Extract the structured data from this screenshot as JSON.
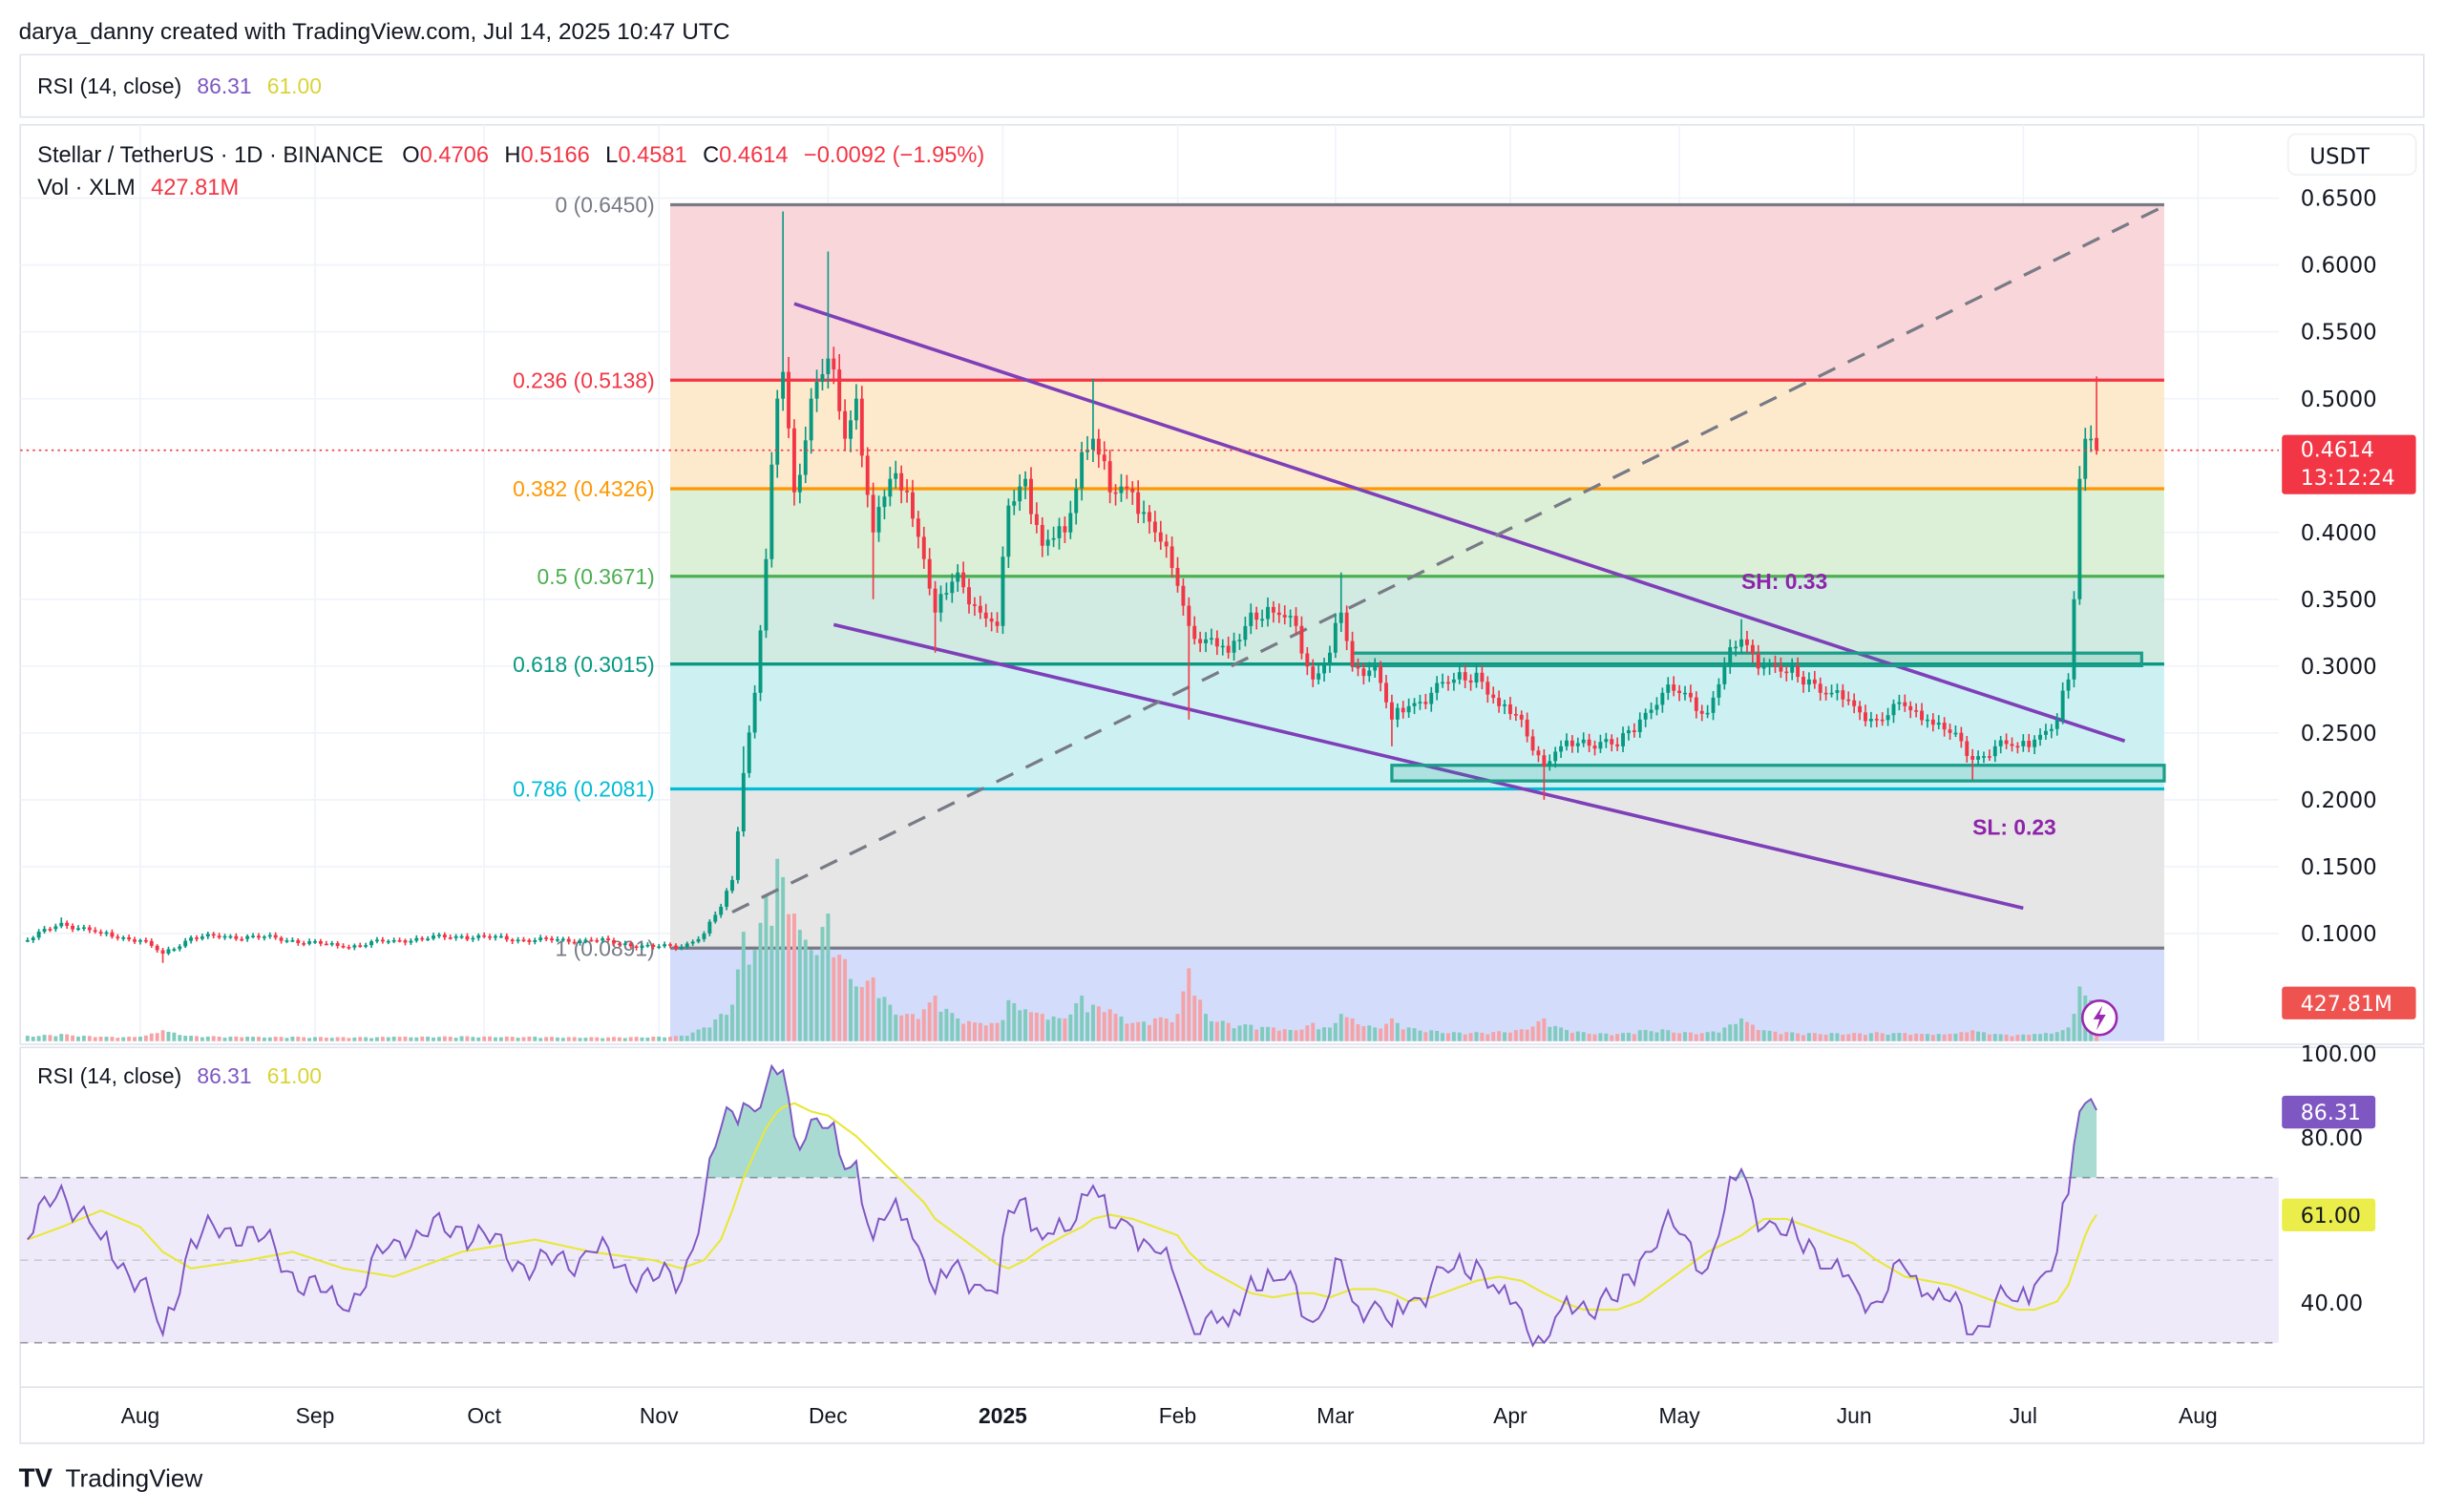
{
  "header": {
    "attribution": "darya_danny created with TradingView.com, Jul 14, 2025 10:47 UTC",
    "rsi_legend": {
      "label": "RSI (14, close)",
      "value": "86.31",
      "ma": "61.00"
    },
    "symbol": {
      "title": "Stellar / TetherUS · 1D · BINANCE",
      "o_label": "O",
      "o": "0.4706",
      "h_label": "H",
      "h": "0.5166",
      "l_label": "L",
      "l": "0.4581",
      "c_label": "C",
      "c": "0.4614",
      "change": "−0.0092 (−1.95%)"
    },
    "volume": {
      "label": "Vol · XLM",
      "value": "427.81M"
    }
  },
  "price_axis": {
    "currency_button": "USDT",
    "ticks": [
      "0.6500",
      "0.6000",
      "0.5500",
      "0.5000",
      "0.4000",
      "0.3500",
      "0.3000",
      "0.2500",
      "0.2000",
      "0.1500",
      "0.1000"
    ],
    "last_price": "0.4614",
    "countdown": "13:12:24",
    "volume_badge": "427.81M"
  },
  "rsi_pane": {
    "label": "RSI (14, close)",
    "value": "86.31",
    "ma": "61.00",
    "ticks": [
      "100.00",
      "80.00",
      "40.00"
    ],
    "upper_band": 70,
    "middle": 50,
    "lower_band": 30
  },
  "time_axis": {
    "labels": [
      {
        "text": "Aug",
        "date": "2024-08-01",
        "bold": false
      },
      {
        "text": "Sep",
        "date": "2024-09-01",
        "bold": false
      },
      {
        "text": "Oct",
        "date": "2024-10-01",
        "bold": false
      },
      {
        "text": "Nov",
        "date": "2024-11-01",
        "bold": false
      },
      {
        "text": "Dec",
        "date": "2024-12-01",
        "bold": false
      },
      {
        "text": "2025",
        "date": "2025-01-01",
        "bold": true
      },
      {
        "text": "Feb",
        "date": "2025-02-01",
        "bold": false
      },
      {
        "text": "Mar",
        "date": "2025-03-01",
        "bold": false
      },
      {
        "text": "Apr",
        "date": "2025-04-01",
        "bold": false
      },
      {
        "text": "May",
        "date": "2025-05-01",
        "bold": false
      },
      {
        "text": "Jun",
        "date": "2025-06-01",
        "bold": false
      },
      {
        "text": "Jul",
        "date": "2025-07-01",
        "bold": false
      },
      {
        "text": "Aug",
        "date": "2025-08-01",
        "bold": false
      }
    ]
  },
  "footer": {
    "brand": "TradingView"
  },
  "colors": {
    "up": "#089981",
    "down": "#f23645",
    "rsi": "#7e57c2",
    "rsi_ma": "#e8e83a",
    "trendline": "#7e3fb8",
    "box": "#1a9e8a",
    "grid": "#f0f3fa"
  },
  "chart_data": {
    "type": "candlestick",
    "ylim": [
      0.05,
      0.66
    ],
    "yscale": "linear",
    "grid": true,
    "columns": [
      "date",
      "close",
      "high",
      "low",
      "rsi",
      "rsi_ma",
      "volume_M"
    ],
    "candles": [
      [
        "2024-07-12",
        0.095,
        null,
        null,
        55,
        55,
        60
      ],
      [
        "2024-07-18",
        0.108,
        0.112,
        null,
        68,
        58,
        80
      ],
      [
        "2024-07-25",
        0.1,
        null,
        null,
        55,
        62,
        50
      ],
      [
        "2024-08-01",
        0.095,
        null,
        null,
        45,
        58,
        50
      ],
      [
        "2024-08-05",
        0.085,
        null,
        0.078,
        32,
        52,
        120
      ],
      [
        "2024-08-10",
        0.097,
        null,
        null,
        55,
        48,
        60
      ],
      [
        "2024-08-20",
        0.098,
        null,
        null,
        58,
        50,
        50
      ],
      [
        "2024-08-28",
        0.095,
        null,
        null,
        47,
        52,
        50
      ],
      [
        "2024-09-06",
        0.09,
        null,
        null,
        38,
        48,
        45
      ],
      [
        "2024-09-15",
        0.095,
        null,
        null,
        55,
        46,
        50
      ],
      [
        "2024-09-27",
        0.098,
        null,
        null,
        58,
        52,
        55
      ],
      [
        "2024-10-10",
        0.095,
        null,
        null,
        48,
        55,
        50
      ],
      [
        "2024-10-20",
        0.095,
        null,
        null,
        52,
        52,
        45
      ],
      [
        "2024-10-31",
        0.09,
        null,
        null,
        45,
        50,
        50
      ],
      [
        "2024-11-05",
        0.09,
        null,
        null,
        45,
        48,
        60
      ],
      [
        "2024-11-09",
        0.1,
        null,
        null,
        65,
        50,
        150
      ],
      [
        "2024-11-12",
        0.12,
        null,
        null,
        82,
        55,
        300
      ],
      [
        "2024-11-14",
        0.14,
        null,
        null,
        86,
        62,
        400
      ],
      [
        "2024-11-16",
        0.22,
        0.24,
        null,
        88,
        70,
        1200
      ],
      [
        "2024-11-18",
        0.28,
        null,
        null,
        86,
        76,
        1000
      ],
      [
        "2024-11-20",
        0.38,
        null,
        null,
        92,
        82,
        1600
      ],
      [
        "2024-11-22",
        0.5,
        null,
        null,
        95,
        86,
        2000
      ],
      [
        "2024-11-23",
        0.52,
        0.64,
        null,
        96,
        87,
        1800
      ],
      [
        "2024-11-25",
        0.43,
        null,
        0.42,
        80,
        88,
        1400
      ],
      [
        "2024-11-28",
        0.5,
        null,
        null,
        84,
        86,
        1000
      ],
      [
        "2024-12-01",
        0.53,
        0.61,
        null,
        82,
        85,
        1400
      ],
      [
        "2024-12-04",
        0.47,
        null,
        null,
        72,
        82,
        900
      ],
      [
        "2024-12-06",
        0.5,
        null,
        null,
        74,
        80,
        600
      ],
      [
        "2024-12-09",
        0.4,
        null,
        0.35,
        55,
        76,
        700
      ],
      [
        "2024-12-12",
        0.44,
        null,
        null,
        62,
        72,
        400
      ],
      [
        "2024-12-15",
        0.43,
        null,
        null,
        60,
        68,
        300
      ],
      [
        "2024-12-18",
        0.38,
        null,
        null,
        50,
        64,
        350
      ],
      [
        "2024-12-20",
        0.34,
        null,
        0.31,
        42,
        60,
        500
      ],
      [
        "2024-12-24",
        0.37,
        null,
        null,
        50,
        56,
        250
      ],
      [
        "2024-12-28",
        0.34,
        null,
        null,
        44,
        52,
        200
      ],
      [
        "2024-12-31",
        0.33,
        null,
        null,
        42,
        49,
        200
      ],
      [
        "2025-01-02",
        0.42,
        null,
        null,
        62,
        48,
        450
      ],
      [
        "2025-01-05",
        0.44,
        null,
        null,
        65,
        50,
        350
      ],
      [
        "2025-01-08",
        0.39,
        null,
        null,
        55,
        53,
        300
      ],
      [
        "2025-01-12",
        0.4,
        null,
        null,
        57,
        56,
        250
      ],
      [
        "2025-01-15",
        0.46,
        null,
        null,
        66,
        58,
        500
      ],
      [
        "2025-01-17",
        0.47,
        0.515,
        null,
        68,
        60,
        400
      ],
      [
        "2025-01-20",
        0.43,
        null,
        null,
        58,
        61,
        350
      ],
      [
        "2025-01-24",
        0.43,
        null,
        null,
        58,
        60,
        200
      ],
      [
        "2025-01-28",
        0.4,
        null,
        null,
        52,
        58,
        250
      ],
      [
        "2025-02-01",
        0.36,
        null,
        null,
        44,
        56,
        300
      ],
      [
        "2025-02-03",
        0.33,
        null,
        0.26,
        36,
        52,
        800
      ],
      [
        "2025-02-06",
        0.32,
        null,
        null,
        36,
        48,
        300
      ],
      [
        "2025-02-10",
        0.31,
        null,
        null,
        34,
        45,
        200
      ],
      [
        "2025-02-14",
        0.34,
        null,
        null,
        46,
        42,
        180
      ],
      [
        "2025-02-18",
        0.34,
        null,
        null,
        45,
        41,
        150
      ],
      [
        "2025-02-22",
        0.33,
        null,
        null,
        44,
        42,
        120
      ],
      [
        "2025-02-25",
        0.29,
        null,
        null,
        35,
        42,
        200
      ],
      [
        "2025-02-28",
        0.31,
        null,
        null,
        42,
        41,
        150
      ],
      [
        "2025-03-02",
        0.34,
        0.37,
        null,
        50,
        42,
        300
      ],
      [
        "2025-03-04",
        0.3,
        null,
        null,
        40,
        43,
        250
      ],
      [
        "2025-03-08",
        0.3,
        null,
        null,
        40,
        43,
        150
      ],
      [
        "2025-03-11",
        0.26,
        null,
        0.24,
        34,
        42,
        250
      ],
      [
        "2025-03-14",
        0.27,
        null,
        null,
        40,
        40,
        150
      ],
      [
        "2025-03-18",
        0.28,
        null,
        null,
        44,
        41,
        120
      ],
      [
        "2025-03-22",
        0.29,
        null,
        null,
        48,
        43,
        100
      ],
      [
        "2025-03-26",
        0.295,
        null,
        null,
        50,
        45,
        100
      ],
      [
        "2025-03-30",
        0.27,
        null,
        null,
        42,
        46,
        110
      ],
      [
        "2025-04-03",
        0.26,
        null,
        null,
        38,
        45,
        130
      ],
      [
        "2025-04-07",
        0.225,
        null,
        0.2,
        30,
        42,
        250
      ],
      [
        "2025-04-10",
        0.24,
        null,
        null,
        38,
        40,
        150
      ],
      [
        "2025-04-14",
        0.245,
        null,
        null,
        40,
        38,
        100
      ],
      [
        "2025-04-20",
        0.24,
        null,
        null,
        40,
        38,
        80
      ],
      [
        "2025-04-24",
        0.26,
        null,
        null,
        50,
        40,
        120
      ],
      [
        "2025-04-28",
        0.28,
        null,
        null,
        58,
        44,
        130
      ],
      [
        "2025-05-02",
        0.28,
        null,
        null,
        56,
        48,
        100
      ],
      [
        "2025-05-06",
        0.265,
        null,
        null,
        48,
        52,
        100
      ],
      [
        "2025-05-09",
        0.3,
        null,
        null,
        62,
        54,
        150
      ],
      [
        "2025-05-12",
        0.32,
        0.335,
        null,
        72,
        56,
        250
      ],
      [
        "2025-05-16",
        0.3,
        null,
        null,
        58,
        60,
        120
      ],
      [
        "2025-05-20",
        0.295,
        null,
        null,
        56,
        60,
        100
      ],
      [
        "2025-05-24",
        0.29,
        null,
        null,
        55,
        58,
        90
      ],
      [
        "2025-05-28",
        0.28,
        null,
        null,
        48,
        56,
        90
      ],
      [
        "2025-06-01",
        0.27,
        null,
        null,
        44,
        54,
        90
      ],
      [
        "2025-06-05",
        0.26,
        null,
        null,
        40,
        50,
        100
      ],
      [
        "2025-06-10",
        0.27,
        null,
        null,
        48,
        46,
        90
      ],
      [
        "2025-06-14",
        0.26,
        null,
        null,
        42,
        45,
        80
      ],
      [
        "2025-06-18",
        0.25,
        null,
        null,
        40,
        44,
        80
      ],
      [
        "2025-06-22",
        0.23,
        null,
        0.215,
        32,
        42,
        120
      ],
      [
        "2025-06-26",
        0.24,
        null,
        null,
        40,
        40,
        80
      ],
      [
        "2025-06-30",
        0.24,
        null,
        null,
        40,
        38,
        70
      ],
      [
        "2025-07-03",
        0.245,
        null,
        null,
        44,
        38,
        80
      ],
      [
        "2025-07-07",
        0.26,
        null,
        null,
        52,
        40,
        100
      ],
      [
        "2025-07-09",
        0.29,
        null,
        null,
        66,
        44,
        150
      ],
      [
        "2025-07-10",
        0.35,
        null,
        null,
        78,
        48,
        300
      ],
      [
        "2025-07-11",
        0.44,
        null,
        null,
        86,
        52,
        600
      ],
      [
        "2025-07-12",
        0.47,
        null,
        null,
        88,
        56,
        500
      ],
      [
        "2025-07-13",
        0.47,
        0.48,
        null,
        89,
        59,
        450
      ],
      [
        "2025-07-14",
        0.4614,
        0.5166,
        0.4581,
        86.31,
        61.0,
        427.81
      ]
    ],
    "last_open": 0.4706,
    "fibonacci": {
      "start_date": "2024-11-03",
      "end_date": "2025-07-26",
      "levels": [
        {
          "label": "0 (0.6450)",
          "price": 0.645,
          "color": "#787b86",
          "fill": "#f9d6da"
        },
        {
          "label": "0.236 (0.5138)",
          "price": 0.5138,
          "color": "#f23645",
          "fill": "#fdeacd"
        },
        {
          "label": "0.382 (0.4326)",
          "price": 0.4326,
          "color": "#ff9800",
          "fill": "#dcefd7"
        },
        {
          "label": "0.5 (0.3671)",
          "price": 0.3671,
          "color": "#4caf50",
          "fill": "#d1ebe2"
        },
        {
          "label": "0.618 (0.3015)",
          "price": 0.3015,
          "color": "#089981",
          "fill": "#cdf1f3"
        },
        {
          "label": "0.786 (0.2081)",
          "price": 0.2081,
          "color": "#00bcd4",
          "fill": "#e6e6e6"
        },
        {
          "label": "1 (0.0891)",
          "price": 0.0891,
          "color": "#787b86",
          "fill": "#d3dcfb"
        }
      ]
    },
    "trendlines": [
      {
        "kind": "upper",
        "from": [
          "2024-11-25",
          0.571
        ],
        "to": [
          "2025-07-19",
          0.244
        ]
      },
      {
        "kind": "lower",
        "from": [
          "2024-12-02",
          0.331
        ],
        "to": [
          "2025-07-01",
          0.119
        ]
      }
    ],
    "dashed_line": {
      "from": [
        "2024-11-14",
        0.116
      ],
      "to": [
        "2025-07-26",
        0.644
      ]
    },
    "boxes": [
      {
        "from": "2025-03-04",
        "to": "2025-07-22",
        "top": 0.3097,
        "bottom": 0.3003
      },
      {
        "from": "2025-03-11",
        "to": "2025-07-26",
        "top": 0.2258,
        "bottom": 0.2141
      }
    ],
    "annotations": [
      {
        "text": "SH: 0.33",
        "date": "2025-05-12",
        "price": 0.3575
      },
      {
        "text": "SL: 0.23",
        "date": "2025-06-22",
        "price": 0.174
      }
    ]
  }
}
